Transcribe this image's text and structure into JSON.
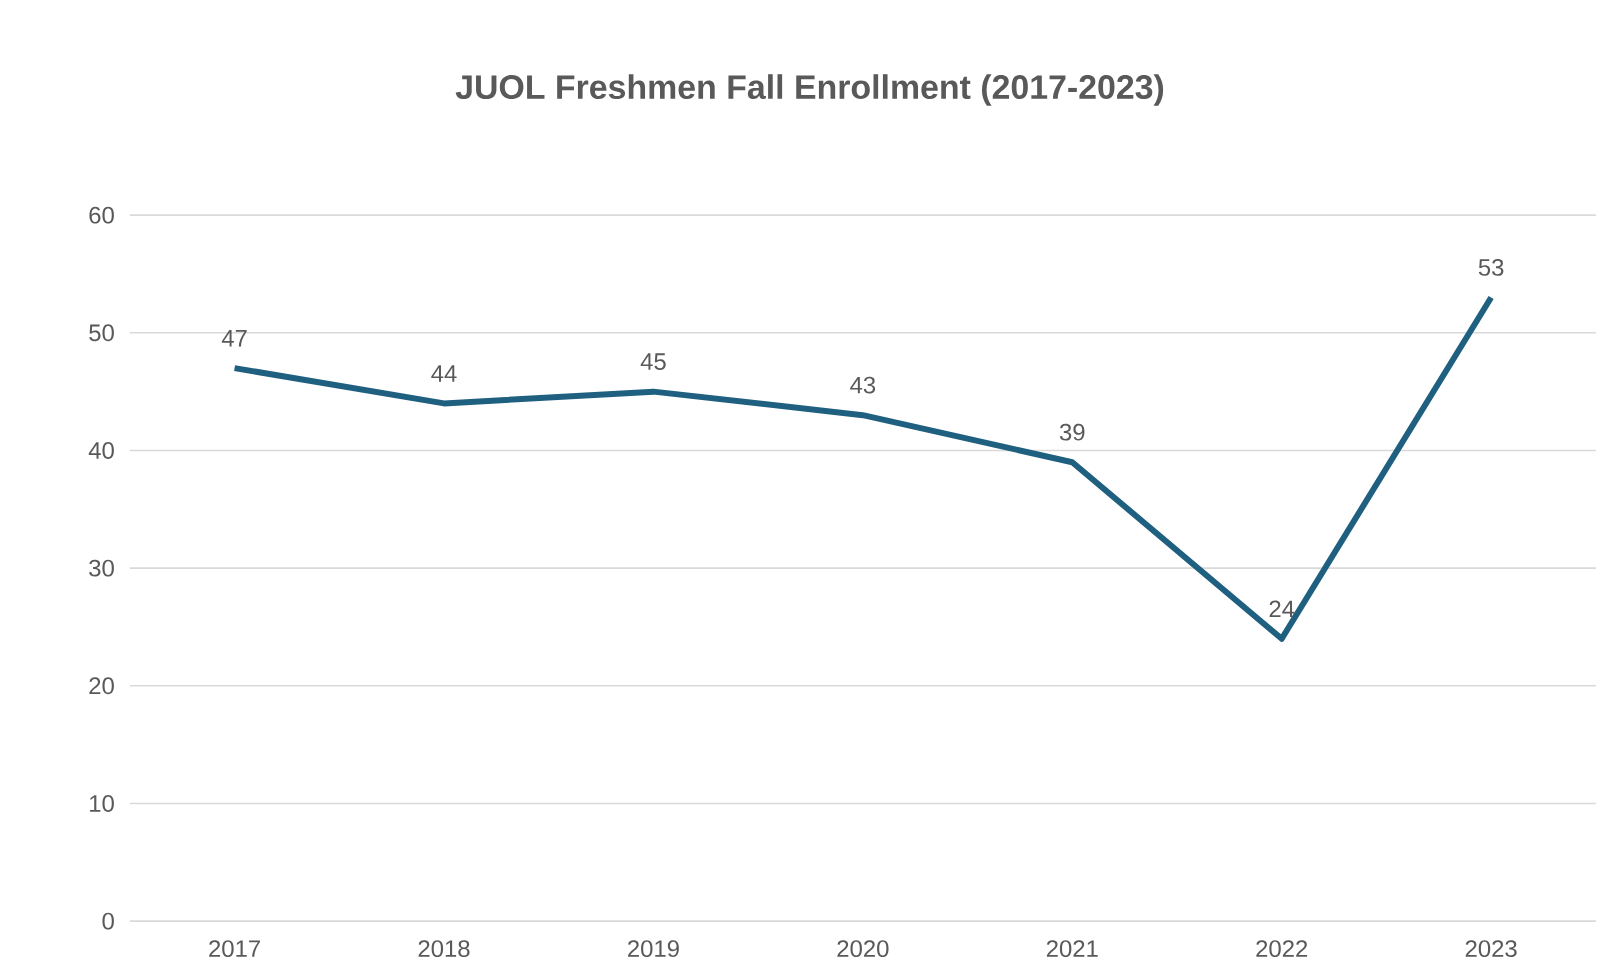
{
  "chart_data": {
    "type": "line",
    "title": "JUOL Freshmen Fall Enrollment (2017-2023)",
    "categories": [
      "2017",
      "2018",
      "2019",
      "2020",
      "2021",
      "2022",
      "2023"
    ],
    "series": [
      {
        "color": "#1f5f7f",
        "values": [
          47,
          44,
          45,
          43,
          39,
          24,
          53
        ]
      }
    ],
    "ylim": [
      0,
      60
    ],
    "yticks": [
      0,
      10,
      20,
      30,
      40,
      50,
      60
    ],
    "grid": "y",
    "data_labels": true
  }
}
